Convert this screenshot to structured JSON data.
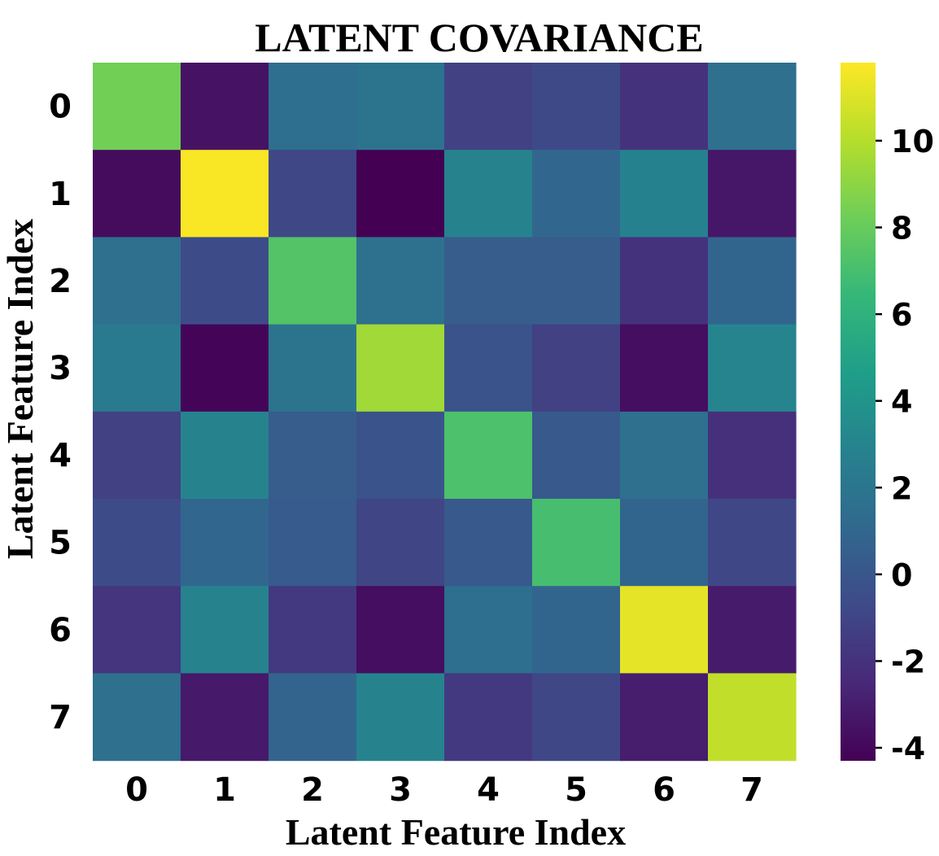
{
  "chart_data": {
    "type": "heatmap",
    "title": "LATENT COVARIANCE",
    "xlabel": "Latent Feature Index",
    "ylabel": "Latent Feature Index",
    "x_categories": [
      "0",
      "1",
      "2",
      "3",
      "4",
      "5",
      "6",
      "7"
    ],
    "y_categories": [
      "0",
      "1",
      "2",
      "3",
      "4",
      "5",
      "6",
      "7"
    ],
    "values": [
      [
        8.3,
        -3.5,
        1.5,
        1.8,
        -1.2,
        -0.8,
        -2.0,
        1.6
      ],
      [
        -3.8,
        11.7,
        -0.9,
        -4.3,
        2.9,
        1.0,
        2.8,
        -3.3
      ],
      [
        1.6,
        -0.6,
        7.4,
        1.7,
        0.4,
        0.4,
        -2.0,
        0.9
      ],
      [
        2.3,
        -4.1,
        1.9,
        9.5,
        -0.2,
        -1.2,
        -3.7,
        3.0
      ],
      [
        -1.2,
        2.9,
        0.4,
        -0.2,
        7.2,
        0.2,
        1.6,
        -2.1
      ],
      [
        -0.6,
        1.0,
        0.3,
        -1.0,
        0.2,
        7.0,
        0.9,
        -0.9
      ],
      [
        -1.9,
        2.9,
        -1.6,
        -3.7,
        1.5,
        0.9,
        11.2,
        -3.1
      ],
      [
        1.6,
        -3.2,
        0.8,
        2.9,
        -1.6,
        -0.9,
        -3.0,
        10.3
      ]
    ],
    "colorbar": {
      "vmin": -4.3,
      "vmax": 11.8,
      "ticks": [
        10,
        8,
        6,
        4,
        2,
        0,
        -2,
        -4
      ],
      "colormap": "viridis",
      "colors": [
        "#440154",
        "#482878",
        "#3e4a89",
        "#31688e",
        "#26828e",
        "#1f9e89",
        "#35b779",
        "#6ece58",
        "#b5de2b",
        "#fde725"
      ]
    },
    "grid": false,
    "legend": "colorbar-right"
  }
}
